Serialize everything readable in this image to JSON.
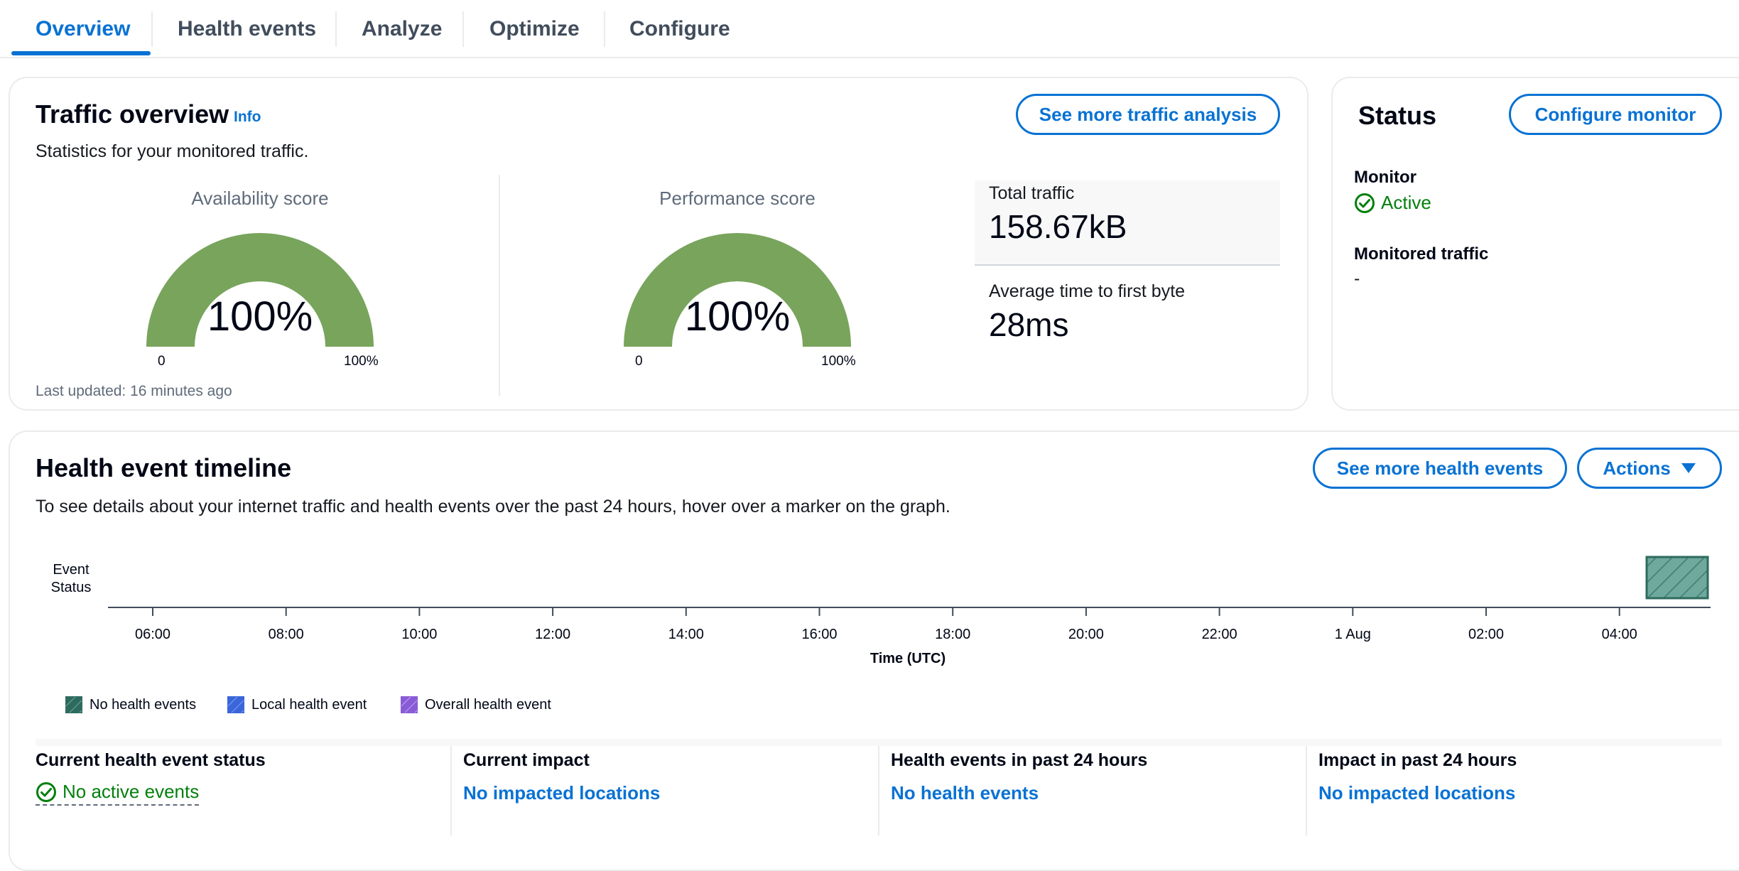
{
  "tabs": [
    {
      "label": "Overview",
      "active": true
    },
    {
      "label": "Health events"
    },
    {
      "label": "Analyze"
    },
    {
      "label": "Optimize"
    },
    {
      "label": "Configure"
    }
  ],
  "traffic": {
    "title": "Traffic overview",
    "info": "Info",
    "description": "Statistics for your monitored traffic.",
    "button": "See more traffic analysis",
    "availability": {
      "title": "Availability score",
      "value": "100%",
      "min": "0",
      "max": "100%",
      "fraction": 1.0
    },
    "performance": {
      "title": "Performance score",
      "value": "100%",
      "min": "0",
      "max": "100%",
      "fraction": 1.0
    },
    "total_traffic_label": "Total traffic",
    "total_traffic_value": "158.67kB",
    "ttfb_label": "Average time to first byte",
    "ttfb_value": "28ms",
    "last_updated": "Last updated: 16 minutes ago"
  },
  "status": {
    "title": "Status",
    "button": "Configure monitor",
    "monitor_label": "Monitor",
    "monitor_value": "Active",
    "traffic_label": "Monitored traffic",
    "traffic_value": "-"
  },
  "timeline": {
    "title": "Health event timeline",
    "description": "To see details about your internet traffic and health events over the past 24 hours, hover over a marker on the graph.",
    "button_more": "See more health events",
    "button_actions": "Actions",
    "y_label_line1": "Event",
    "y_label_line2": "Status",
    "x_label": "Time (UTC)",
    "ticks": [
      "06:00",
      "08:00",
      "10:00",
      "12:00",
      "14:00",
      "16:00",
      "18:00",
      "20:00",
      "22:00",
      "1 Aug",
      "02:00",
      "04:00"
    ],
    "legend": [
      {
        "label": "No health events",
        "color": "#2e6b5e"
      },
      {
        "label": "Local health event",
        "color": "#3a66d9"
      },
      {
        "label": "Overall health event",
        "color": "#8a5bd6"
      }
    ]
  },
  "summary": [
    {
      "label": "Current health event status",
      "value": "No active events",
      "kind": "status"
    },
    {
      "label": "Current impact",
      "value": "No impacted locations",
      "kind": "link"
    },
    {
      "label": "Health events in past 24 hours",
      "value": "No health events",
      "kind": "link"
    },
    {
      "label": "Impact in past 24 hours",
      "value": "No impacted locations",
      "kind": "link"
    }
  ],
  "colors": {
    "accent": "#0972d3",
    "gauge": "#78a45c",
    "success": "#037f0c",
    "event_bar": "#6fa89c"
  }
}
